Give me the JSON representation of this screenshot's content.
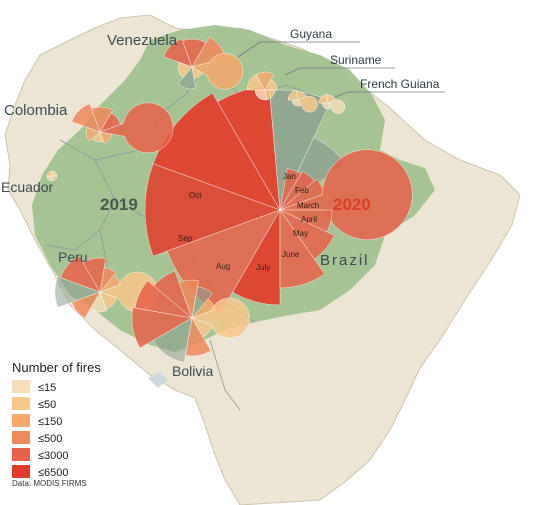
{
  "countries": [
    {
      "name": "Venezuela",
      "key": "venezuela"
    },
    {
      "name": "Colombia",
      "key": "colombia"
    },
    {
      "name": "Ecuador",
      "key": "ecuador"
    },
    {
      "name": "Peru",
      "key": "peru"
    },
    {
      "name": "Bolivia",
      "key": "bolivia"
    },
    {
      "name": "Brazil",
      "key": "brazil"
    }
  ],
  "callouts": {
    "guyana": "Guyana",
    "suriname": "Suriname",
    "french_guiana": "French Guiana"
  },
  "years": {
    "y2019": "2019",
    "y2020": "2020"
  },
  "months_2019": [
    "Aug",
    "Sep",
    "Oct"
  ],
  "months_2020": [
    "Jan",
    "Feb",
    "March",
    "April",
    "May",
    "June",
    "July"
  ],
  "legend": {
    "title": "Number of fires",
    "classes": [
      {
        "label": "≤15",
        "color": "#f5ddb8"
      },
      {
        "label": "≤50",
        "color": "#f7c88c"
      },
      {
        "label": "≤150",
        "color": "#f5a96f"
      },
      {
        "label": "≤500",
        "color": "#ef8a5d"
      },
      {
        "label": "≤3000",
        "color": "#e8624a"
      },
      {
        "label": "≤6500",
        "color": "#e33b2b"
      }
    ]
  },
  "source": "Data: MODIS FIRMS",
  "colors": {
    "amazon_green": "#9dbf8c",
    "land": "#ece5d3",
    "ocean": "#ffffff",
    "border": "#8a9a9e",
    "gray_wedge": "#8a9e8f",
    "year_2019": "#4a5a4c",
    "year_2020": "#d9412b"
  }
}
